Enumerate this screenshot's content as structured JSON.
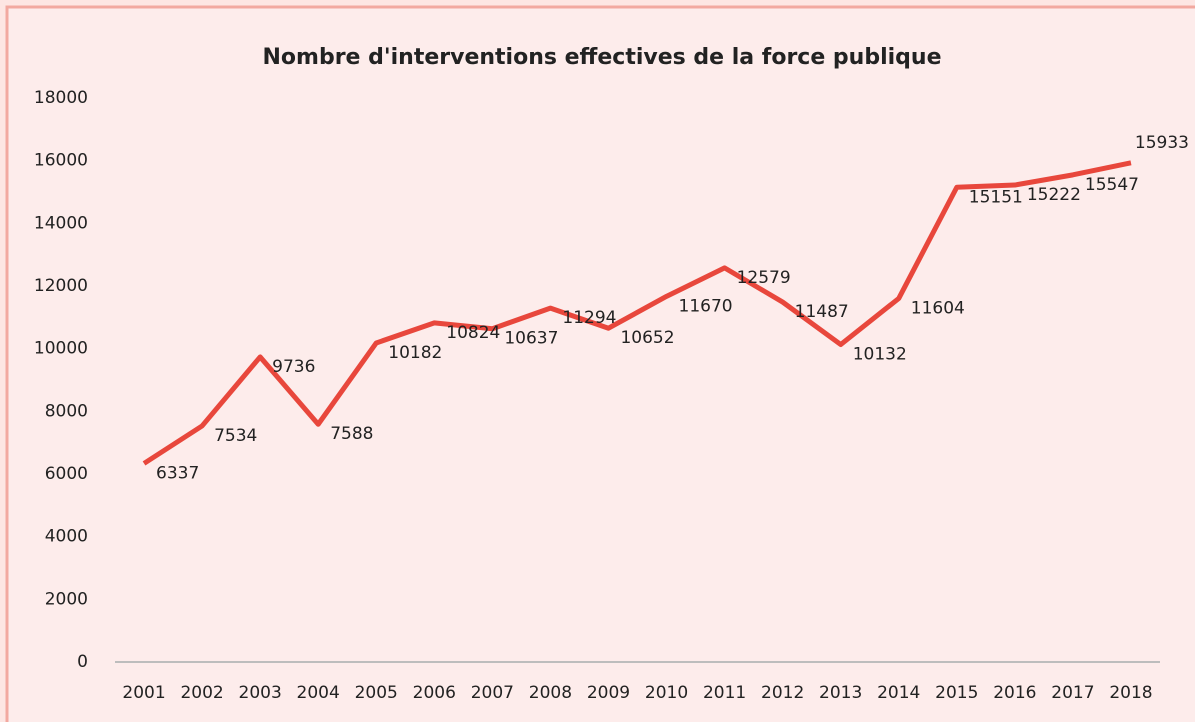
{
  "chart_data": {
    "type": "line",
    "title": "Nombre d'interventions effectives de la force publique",
    "categories": [
      "2001",
      "2002",
      "2003",
      "2004",
      "2005",
      "2006",
      "2007",
      "2008",
      "2009",
      "2010",
      "2011",
      "2012",
      "2013",
      "2014",
      "2015",
      "2016",
      "2017",
      "2018"
    ],
    "values": [
      6337,
      7534,
      9736,
      7588,
      10182,
      10824,
      10637,
      11294,
      10652,
      11670,
      12579,
      11487,
      10132,
      11604,
      15151,
      15222,
      15547,
      15933
    ],
    "color": "#e8473c",
    "ylim": [
      0,
      18000
    ],
    "yticks": [
      0,
      2000,
      4000,
      6000,
      8000,
      10000,
      12000,
      14000,
      16000,
      18000
    ],
    "grid": false
  }
}
